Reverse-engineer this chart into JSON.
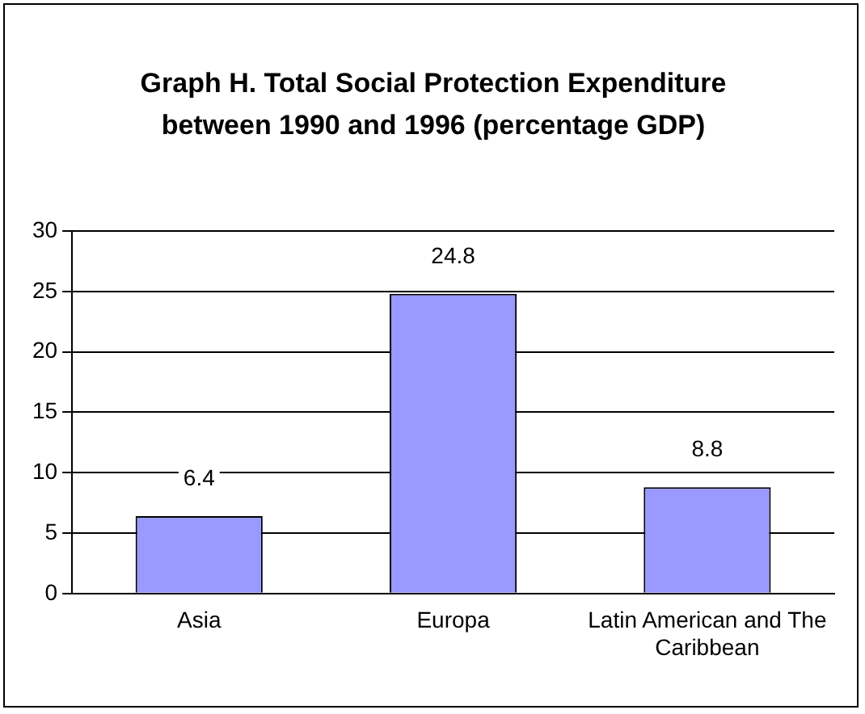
{
  "chart_data": {
    "type": "bar",
    "title": "Graph H. Total Social Protection Expenditure between 1990 and 1996 (percentage GDP)",
    "categories": [
      "Asia",
      "Europa",
      "Latin American and The Caribbean"
    ],
    "values": [
      6.4,
      24.8,
      8.8
    ],
    "color": "#9999ff",
    "ylim": [
      0,
      30
    ],
    "yticks": [
      0,
      5,
      10,
      15,
      20,
      25,
      30
    ],
    "grid": "y",
    "data_labels": true,
    "legend": false
  }
}
